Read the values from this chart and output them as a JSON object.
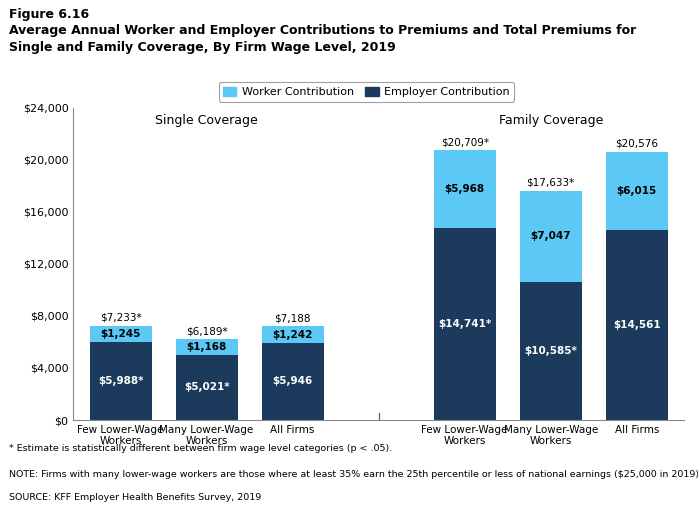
{
  "title_line1": "Figure 6.16",
  "title_line2": "Average Annual Worker and Employer Contributions to Premiums and Total Premiums for\nSingle and Family Coverage, By Firm Wage Level, 2019",
  "legend_labels": [
    "Worker Contribution",
    "Employer Contribution"
  ],
  "worker_color": "#5BC8F5",
  "employer_color": "#1B3A5C",
  "single_categories": [
    "Few Lower-Wage\nWorkers",
    "Many Lower-Wage\nWorkers",
    "All Firms"
  ],
  "family_categories": [
    "Few Lower-Wage\nWorkers",
    "Many Lower-Wage\nWorkers",
    "All Firms"
  ],
  "single_employer": [
    5988,
    5021,
    5946
  ],
  "single_worker": [
    1245,
    1168,
    1242
  ],
  "single_total": [
    "$7,233*",
    "$6,189*",
    "$7,188"
  ],
  "single_employer_labels": [
    "$5,988*",
    "$5,021*",
    "$5,946"
  ],
  "single_worker_labels": [
    "$1,245",
    "$1,168",
    "$1,242"
  ],
  "family_employer": [
    14741,
    10585,
    14561
  ],
  "family_worker": [
    5968,
    7047,
    6015
  ],
  "family_total": [
    "$20,709*",
    "$17,633*",
    "$20,576"
  ],
  "family_employer_labels": [
    "$14,741*",
    "$10,585*",
    "$14,561"
  ],
  "family_worker_labels": [
    "$5,968",
    "$7,047",
    "$6,015"
  ],
  "ylim": [
    0,
    24000
  ],
  "yticks": [
    0,
    4000,
    8000,
    12000,
    16000,
    20000,
    24000
  ],
  "single_label": "Single Coverage",
  "family_label": "Family Coverage",
  "note1": "* Estimate is statistically different between firm wage level categories (p < .05).",
  "note2": "NOTE: Firms with many lower-wage workers are those where at least 35% earn the 25th percentile or less of national earnings ($25,000 in 2019).",
  "note3": "SOURCE: KFF Employer Health Benefits Survey, 2019",
  "background_color": "#ffffff"
}
